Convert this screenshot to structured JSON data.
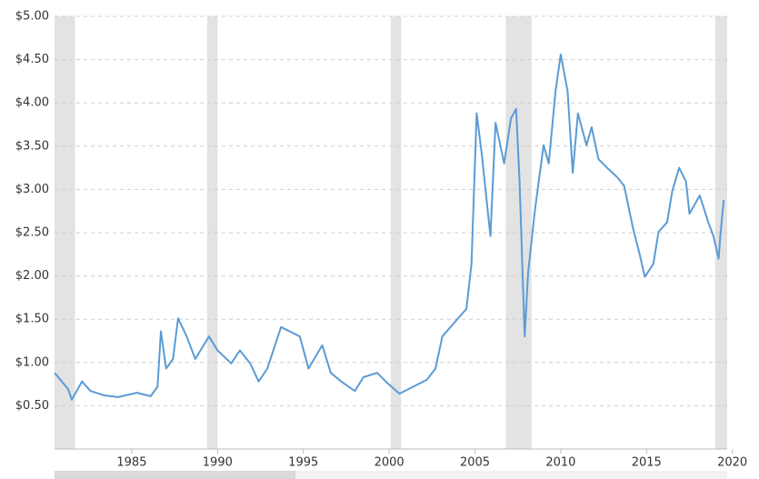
{
  "chart_data": {
    "type": "line",
    "color": "#5b9bd5",
    "band_color": "#e3e3e3",
    "grid": true,
    "xlim": [
      1980.5,
      2019.7
    ],
    "ylim": [
      0,
      5
    ],
    "xticks": [
      1985,
      1990,
      1995,
      2000,
      2005,
      2010,
      2015,
      2020
    ],
    "yticks": [
      {
        "value": 0.5,
        "label": "$0.50"
      },
      {
        "value": 1,
        "label": "$1.00"
      },
      {
        "value": 1.5,
        "label": "$1.50"
      },
      {
        "value": 2,
        "label": "$2.00"
      },
      {
        "value": 2.5,
        "label": "$2.50"
      },
      {
        "value": 3,
        "label": "$3.00"
      },
      {
        "value": 3.5,
        "label": "$3.50"
      },
      {
        "value": 4,
        "label": "$4.00"
      },
      {
        "value": 4.5,
        "label": "$4.50"
      },
      {
        "value": 5,
        "label": "$5.00"
      }
    ],
    "shaded_ranges": [
      [
        1980.5,
        1981.7
      ],
      [
        1989.4,
        1990.0
      ],
      [
        2000.1,
        2000.7
      ],
      [
        2006.8,
        2008.3
      ],
      [
        2019.0,
        2019.7
      ]
    ],
    "x": [
      1980.5,
      1981.3,
      1981.5,
      1982.1,
      1982.6,
      1983.4,
      1984.2,
      1985.3,
      1986.1,
      1986.5,
      1986.7,
      1987.0,
      1987.4,
      1987.7,
      1988.2,
      1988.7,
      1989.5,
      1990.0,
      1990.8,
      1991.3,
      1991.9,
      1992.4,
      1992.9,
      1993.7,
      1994.8,
      1995.3,
      1996.1,
      1996.6,
      1997.2,
      1998.0,
      1998.5,
      1999.3,
      1999.8,
      2000.6,
      2001.4,
      2002.2,
      2002.7,
      2003.1,
      2003.8,
      2004.5,
      2004.8,
      2005.1,
      2005.4,
      2005.9,
      2006.2,
      2006.7,
      2007.1,
      2007.4,
      2007.6,
      2007.9,
      2008.1,
      2008.5,
      2009.0,
      2009.3,
      2009.7,
      2010.0,
      2010.4,
      2010.7,
      2011.0,
      2011.5,
      2011.8,
      2012.2,
      2012.7,
      2013.3,
      2013.7,
      2014.2,
      2014.6,
      2014.9,
      2015.4,
      2015.7,
      2016.2,
      2016.5,
      2016.9,
      2017.3,
      2017.5,
      2018.1,
      2018.6,
      2018.9,
      2019.2,
      2019.3,
      2019.5
    ],
    "values": [
      0.88,
      0.69,
      0.57,
      0.78,
      0.67,
      0.62,
      0.6,
      0.65,
      0.61,
      0.72,
      1.36,
      0.93,
      1.04,
      1.51,
      1.3,
      1.04,
      1.3,
      1.14,
      0.99,
      1.14,
      0.99,
      0.78,
      0.93,
      1.41,
      1.3,
      0.93,
      1.2,
      0.88,
      0.78,
      0.67,
      0.83,
      0.88,
      0.78,
      0.64,
      0.72,
      0.8,
      0.93,
      1.3,
      1.46,
      1.62,
      2.14,
      3.88,
      3.4,
      2.46,
      3.77,
      3.3,
      3.82,
      3.93,
      3.09,
      1.3,
      2.04,
      2.77,
      3.51,
      3.3,
      4.14,
      4.56,
      4.14,
      3.19,
      3.88,
      3.51,
      3.72,
      3.35,
      3.25,
      3.14,
      3.04,
      2.56,
      2.25,
      1.99,
      2.14,
      2.51,
      2.62,
      2.98,
      3.25,
      3.09,
      2.72,
      2.93,
      2.62,
      2.46,
      2.2,
      2.46,
      2.88
    ]
  }
}
